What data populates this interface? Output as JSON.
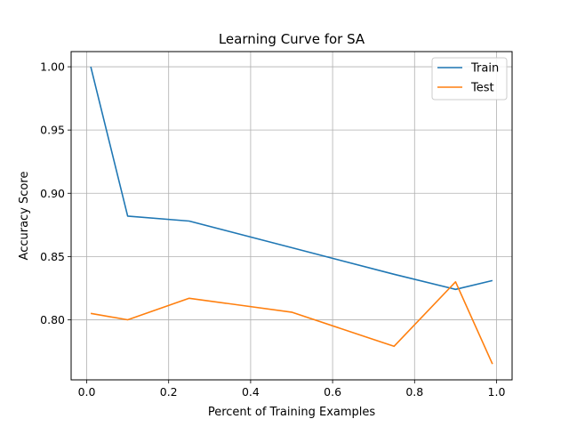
{
  "chart_data": {
    "type": "line",
    "title": "Learning Curve for SA",
    "xlabel": "Percent of Training Examples",
    "ylabel": "Accuracy Score",
    "xlim": [
      -0.038,
      1.038
    ],
    "ylim": [
      0.7525,
      1.012
    ],
    "xticks": [
      0.0,
      0.2,
      0.4,
      0.6,
      0.8,
      1.0
    ],
    "xtick_labels": [
      "0.0",
      "0.2",
      "0.4",
      "0.6",
      "0.8",
      "1.0"
    ],
    "yticks": [
      0.8,
      0.85,
      0.9,
      0.95,
      1.0
    ],
    "ytick_labels": [
      "0.80",
      "0.85",
      "0.90",
      "0.95",
      "1.00"
    ],
    "grid": true,
    "legend_position": "top-right",
    "x": [
      0.01,
      0.1,
      0.25,
      0.5,
      0.75,
      0.9,
      0.99
    ],
    "series": [
      {
        "name": "Train",
        "color": "#1f77b4",
        "values": [
          1.0,
          0.882,
          0.878,
          0.857,
          0.836,
          0.824,
          0.831
        ]
      },
      {
        "name": "Test",
        "color": "#ff7f0e",
        "values": [
          0.805,
          0.8,
          0.817,
          0.806,
          0.779,
          0.83,
          0.765
        ]
      }
    ]
  }
}
